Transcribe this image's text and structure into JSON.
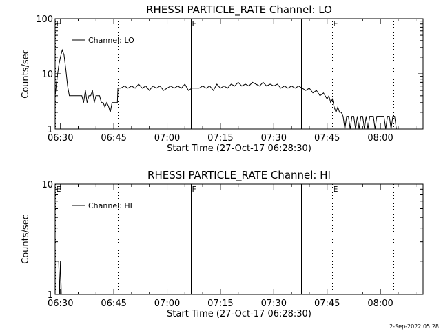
{
  "footer": {
    "date": "2-Sep-2022 05:28"
  },
  "chart_data": [
    {
      "type": "line",
      "title": "RHESSI PARTICLE_RATE Channel: LO",
      "xlabel": "Start Time (27-Oct-17 06:28:30)",
      "ylabel": "Counts/sec",
      "yscale": "log",
      "xlim": [
        "06:28:30",
        "08:12:00"
      ],
      "ylim": [
        1,
        100
      ],
      "xticks": [
        "06:30",
        "06:45",
        "07:00",
        "07:15",
        "07:30",
        "07:45",
        "08:00"
      ],
      "yticks": [
        "1",
        "10",
        "100"
      ],
      "legend": "Channel: LO",
      "legend_position": "top-left",
      "markers": [
        {
          "time": "06:28:30",
          "label": "E",
          "style": "dotted"
        },
        {
          "time": "06:46:10",
          "label": "",
          "style": "dotted"
        },
        {
          "time": "07:06:40",
          "label": "F",
          "style": "solid"
        },
        {
          "time": "07:37:40",
          "label": "",
          "style": "solid"
        },
        {
          "time": "07:46:20",
          "label": "E",
          "style": "dotted"
        },
        {
          "time": "08:03:40",
          "label": "",
          "style": "dotted"
        }
      ],
      "series": [
        {
          "points": [
            [
              "06:28:30",
              4
            ],
            [
              "06:29:00",
              8
            ],
            [
              "06:29:30",
              14
            ],
            [
              "06:30:00",
              20
            ],
            [
              "06:30:30",
              27
            ],
            [
              "06:31:00",
              22
            ],
            [
              "06:31:30",
              12
            ],
            [
              "06:32:00",
              6
            ],
            [
              "06:32:30",
              4
            ],
            [
              "06:34:00",
              4
            ],
            [
              "06:36:00",
              4
            ],
            [
              "06:36:30",
              3
            ],
            [
              "06:37:00",
              5
            ],
            [
              "06:37:30",
              3
            ],
            [
              "06:38:00",
              4
            ],
            [
              "06:38:30",
              4
            ],
            [
              "06:39:00",
              5
            ],
            [
              "06:39:30",
              3
            ],
            [
              "06:40:00",
              4
            ],
            [
              "06:41:00",
              4
            ],
            [
              "06:41:30",
              3
            ],
            [
              "06:42:00",
              3
            ],
            [
              "06:42:30",
              2.5
            ],
            [
              "06:43:00",
              3
            ],
            [
              "06:43:30",
              2.6
            ],
            [
              "06:44:00",
              2
            ],
            [
              "06:44:30",
              3
            ],
            [
              "06:46:00",
              3
            ],
            [
              "06:46:10",
              5.5
            ],
            [
              "06:47:00",
              5.5
            ],
            [
              "06:48:00",
              6
            ],
            [
              "06:49:00",
              5.5
            ],
            [
              "06:50:00",
              6
            ],
            [
              "06:51:00",
              5.5
            ],
            [
              "06:52:00",
              6.5
            ],
            [
              "06:53:00",
              5.5
            ],
            [
              "06:54:00",
              6
            ],
            [
              "06:55:00",
              5
            ],
            [
              "06:56:00",
              6
            ],
            [
              "06:57:00",
              5.5
            ],
            [
              "06:58:00",
              6
            ],
            [
              "06:59:00",
              5
            ],
            [
              "07:00:00",
              5.5
            ],
            [
              "07:01:00",
              6
            ],
            [
              "07:02:00",
              5.5
            ],
            [
              "07:03:00",
              6
            ],
            [
              "07:04:00",
              5.5
            ],
            [
              "07:05:00",
              6.5
            ],
            [
              "07:06:00",
              5
            ],
            [
              "07:07:00",
              5.5
            ],
            [
              "07:09:00",
              5.5
            ],
            [
              "07:10:00",
              6
            ],
            [
              "07:11:00",
              5.5
            ],
            [
              "07:12:00",
              6
            ],
            [
              "07:13:00",
              5
            ],
            [
              "07:14:00",
              6.5
            ],
            [
              "07:15:00",
              5.5
            ],
            [
              "07:16:00",
              6
            ],
            [
              "07:17:00",
              5.5
            ],
            [
              "07:18:00",
              6.5
            ],
            [
              "07:19:00",
              6
            ],
            [
              "07:20:00",
              7
            ],
            [
              "07:21:00",
              6
            ],
            [
              "07:22:00",
              6.5
            ],
            [
              "07:23:00",
              6
            ],
            [
              "07:24:00",
              7
            ],
            [
              "07:25:00",
              6.5
            ],
            [
              "07:26:00",
              6
            ],
            [
              "07:27:00",
              7
            ],
            [
              "07:28:00",
              6
            ],
            [
              "07:29:00",
              6.5
            ],
            [
              "07:30:00",
              6
            ],
            [
              "07:31:00",
              6.5
            ],
            [
              "07:32:00",
              5.5
            ],
            [
              "07:33:00",
              6
            ],
            [
              "07:34:00",
              5.5
            ],
            [
              "07:35:00",
              6
            ],
            [
              "07:36:00",
              5.5
            ],
            [
              "07:37:00",
              6
            ],
            [
              "07:38:00",
              5.5
            ],
            [
              "07:39:00",
              5
            ],
            [
              "07:40:00",
              5.5
            ],
            [
              "07:41:00",
              4.5
            ],
            [
              "07:42:00",
              5
            ],
            [
              "07:43:00",
              4
            ],
            [
              "07:44:00",
              4.5
            ],
            [
              "07:45:00",
              3.5
            ],
            [
              "07:45:30",
              4
            ],
            [
              "07:46:00",
              3
            ],
            [
              "07:46:30",
              3.5
            ],
            [
              "07:47:00",
              2.5
            ],
            [
              "07:47:30",
              2
            ],
            [
              "07:48:00",
              2.5
            ],
            [
              "07:48:30",
              2
            ],
            [
              "07:49:00",
              2
            ],
            [
              "07:49:30",
              1.7
            ],
            [
              "07:50:00",
              1
            ],
            [
              "07:50:30",
              1.7
            ],
            [
              "07:51:00",
              1.7
            ],
            [
              "07:51:30",
              1
            ],
            [
              "07:52:00",
              1.7
            ],
            [
              "07:52:30",
              1.7
            ],
            [
              "07:53:00",
              1
            ],
            [
              "07:53:30",
              1.7
            ],
            [
              "07:54:00",
              1
            ],
            [
              "07:54:30",
              1.7
            ],
            [
              "07:55:00",
              1.7
            ],
            [
              "07:55:30",
              1
            ],
            [
              "07:56:00",
              1.7
            ],
            [
              "07:56:30",
              1
            ],
            [
              "07:57:00",
              1.7
            ],
            [
              "07:58:00",
              1.7
            ],
            [
              "07:58:30",
              1
            ],
            [
              "07:59:00",
              1.7
            ],
            [
              "07:59:30",
              1.7
            ],
            [
              "08:00:00",
              1.7
            ],
            [
              "08:01:00",
              1.7
            ],
            [
              "08:01:30",
              1
            ],
            [
              "08:02:00",
              1.7
            ],
            [
              "08:02:30",
              1.7
            ],
            [
              "08:03:00",
              1
            ],
            [
              "08:03:30",
              1.7
            ],
            [
              "08:04:00",
              1.7
            ],
            [
              "08:04:30",
              1
            ]
          ]
        }
      ]
    },
    {
      "type": "line",
      "title": "RHESSI PARTICLE_RATE Channel: HI",
      "xlabel": "Start Time (27-Oct-17 06:28:30)",
      "ylabel": "Counts/sec",
      "yscale": "log",
      "xlim": [
        "06:28:30",
        "08:12:00"
      ],
      "ylim": [
        1,
        10
      ],
      "xticks": [
        "06:30",
        "06:45",
        "07:00",
        "07:15",
        "07:30",
        "07:45",
        "08:00"
      ],
      "yticks": [
        "1",
        "10"
      ],
      "legend": "Channel: HI",
      "legend_position": "top-left",
      "markers": [
        {
          "time": "06:28:30",
          "label": "E",
          "style": "dotted"
        },
        {
          "time": "06:46:10",
          "label": "",
          "style": "dotted"
        },
        {
          "time": "07:06:40",
          "label": "F",
          "style": "solid"
        },
        {
          "time": "07:37:40",
          "label": "",
          "style": "solid"
        },
        {
          "time": "07:46:20",
          "label": "E",
          "style": "dotted"
        },
        {
          "time": "08:03:40",
          "label": "",
          "style": "dotted"
        }
      ],
      "series": [
        {
          "points": [
            [
              "06:28:30",
              2
            ],
            [
              "06:29:30",
              2
            ],
            [
              "06:29:45",
              1
            ],
            [
              "06:30:00",
              2
            ],
            [
              "06:30:15",
              1
            ]
          ]
        }
      ]
    }
  ]
}
